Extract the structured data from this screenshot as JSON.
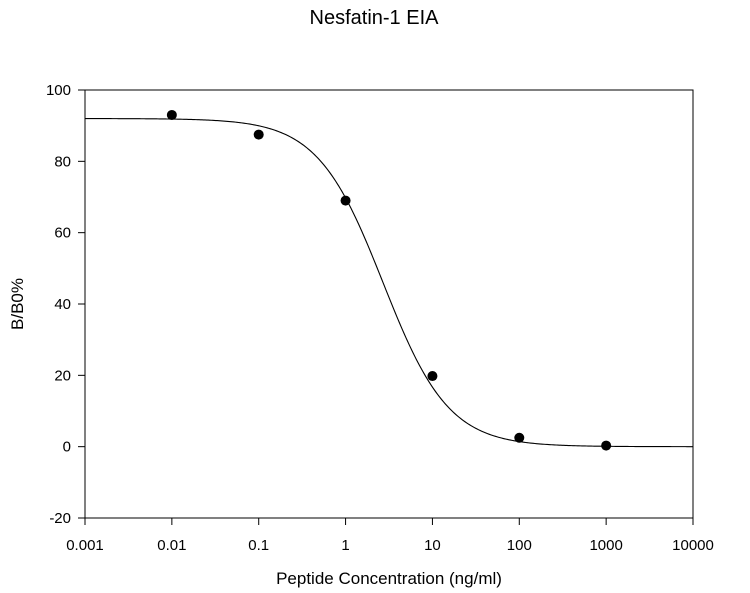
{
  "chart_data": {
    "type": "scatter",
    "title": "Nesfatin-1 EIA",
    "xlabel": "Peptide Concentration (ng/ml)",
    "ylabel": "B/B0%",
    "xscale": "log",
    "xlim": [
      0.001,
      10000
    ],
    "ylim": [
      -20,
      100
    ],
    "xticks": [
      "0.001",
      "0.01",
      "0.1",
      "1",
      "10",
      "100",
      "1000",
      "10000"
    ],
    "yticks": [
      "-20",
      "0",
      "20",
      "40",
      "60",
      "80",
      "100"
    ],
    "grid": false,
    "legend": "none",
    "series": [
      {
        "marker": "filled-circle",
        "x": [
          0.01,
          0.1,
          1,
          10,
          100,
          1000
        ],
        "y": [
          93,
          87.5,
          69,
          19.8,
          2.5,
          0.3
        ]
      }
    ],
    "fit_curve": {
      "model": "4-parameter logistic",
      "top": 92,
      "bottom": 0,
      "ec50": 2.7,
      "hill": 1.15
    },
    "colors": {
      "points": "#000000",
      "curve": "#000000",
      "axes": "#000000"
    }
  }
}
